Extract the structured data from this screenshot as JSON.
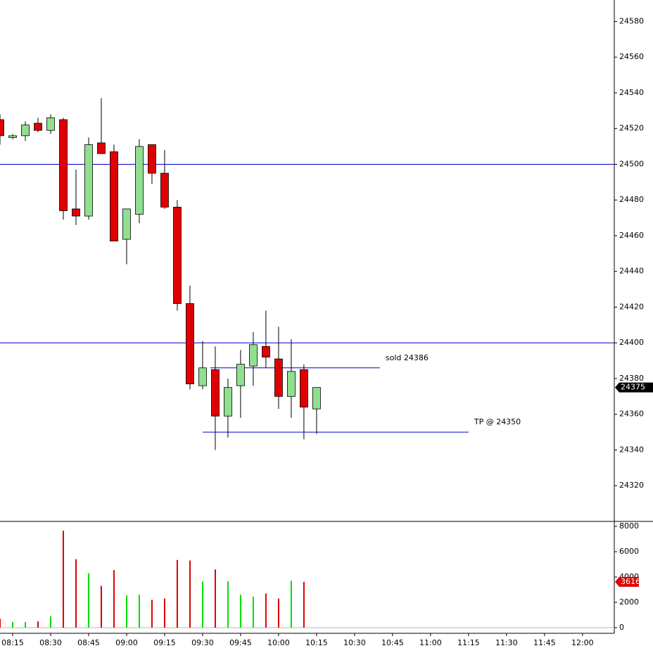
{
  "chart_data": {
    "type": "candlestick",
    "x": [
      "08:10",
      "08:15",
      "08:20",
      "08:25",
      "08:30",
      "08:35",
      "08:40",
      "08:45",
      "08:50",
      "08:55",
      "09:00",
      "09:05",
      "09:10",
      "09:15",
      "09:20",
      "09:25",
      "09:30",
      "09:35",
      "09:40",
      "09:45",
      "09:50",
      "09:55",
      "10:00",
      "10:05",
      "10:10",
      "10:15"
    ],
    "open": [
      24525,
      24515,
      24516,
      24523,
      24519,
      24525,
      24475,
      24471,
      24512,
      24507,
      24458,
      24472,
      24511,
      24495,
      24476,
      24422,
      24376,
      24385,
      24359,
      24376,
      24387,
      24398,
      24391,
      24370,
      24385,
      24363
    ],
    "high": [
      24528,
      24517,
      24524,
      24526,
      24528,
      24526,
      24497,
      24515,
      24537,
      24511,
      24475,
      24514,
      24511,
      24508,
      24480,
      24432,
      24401,
      24398,
      24380,
      24396,
      24406,
      24418,
      24409,
      24402,
      24388,
      24375
    ],
    "low": [
      24511,
      24514,
      24513,
      24518,
      24517,
      24469,
      24466,
      24469,
      24506,
      24457,
      24444,
      24467,
      24489,
      24475,
      24418,
      24374,
      24374,
      24340,
      24347,
      24358,
      24376,
      24386,
      24363,
      24358,
      24346,
      24349
    ],
    "close": [
      24516,
      24516,
      24522,
      24519,
      24526,
      24474,
      24471,
      24511,
      24506,
      24457,
      24475,
      24510,
      24495,
      24476,
      24422,
      24377,
      24386,
      24359,
      24375,
      24388,
      24399,
      24392,
      24370,
      24384,
      24364,
      24375
    ],
    "volume": [
      700,
      450,
      450,
      500,
      900,
      7650,
      5400,
      4300,
      3300,
      4550,
      2550,
      2600,
      2200,
      2300,
      5350,
      5300,
      3650,
      4600,
      3650,
      2600,
      2450,
      2700,
      2300,
      3700,
      3616,
      null
    ],
    "up_color": "#90e090",
    "down_color": "#e00000",
    "volume_up_color": "#00dd00",
    "volume_down_color": "#e00000",
    "xlim": [
      "08:10",
      "12:12"
    ],
    "xticks": [
      "08:15",
      "08:30",
      "08:45",
      "09:00",
      "09:15",
      "09:30",
      "09:45",
      "10:00",
      "10:15",
      "10:30",
      "10:45",
      "11:00",
      "11:15",
      "11:30",
      "11:45",
      "12:00"
    ],
    "ylim": [
      24300,
      24592
    ],
    "yticks": [
      24320,
      24340,
      24360,
      24380,
      24400,
      24420,
      24440,
      24460,
      24480,
      24500,
      24520,
      24540,
      24560,
      24580
    ],
    "volume_ylim": [
      -444,
      8389
    ],
    "volume_yticks": [
      0,
      2000,
      4000,
      6000,
      8000
    ],
    "line_color": "#0000cc",
    "hlines": [
      {
        "value": 24500
      },
      {
        "value": 24400
      },
      {
        "value": 24386,
        "from": "09:33",
        "to": "10:40",
        "label": "sold 24386"
      },
      {
        "value": 24350,
        "from": "09:30",
        "to": "11:15",
        "label": "TP @ 24350"
      }
    ]
  }
}
